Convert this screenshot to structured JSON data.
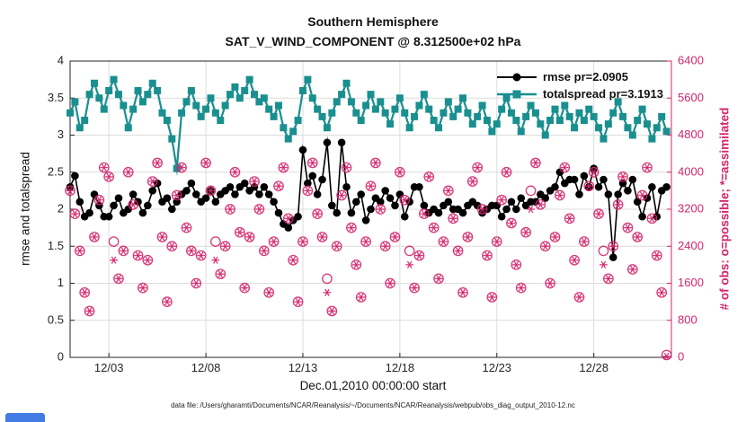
{
  "page": {
    "background": "#ffffff"
  },
  "footer": {
    "text": "data file: /Users/gharamti/Documents/NCAR/Reanalysis/~/Documents/NCAR/Reanalysis/webpub/obs_diag_output_2010-12.nc"
  },
  "chart_data": {
    "type": "line",
    "title": "Southern Hemisphere",
    "subtitle": "SAT_V_WIND_COMPONENT @ 8.312500e+02 hPa",
    "xlabel": "Dec.01,2010 00:00:00 start",
    "ylabel_left": "rmse and totalspread",
    "ylabel_right": "# of obs: o=possible; *=assimilated",
    "grid": true,
    "xlim": [
      0,
      31
    ],
    "ylim_left": [
      0,
      4
    ],
    "ylim_right": [
      0,
      6400
    ],
    "yticks_left": [
      0,
      0.5,
      1,
      1.5,
      2,
      2.5,
      3,
      3.5,
      4
    ],
    "yticks_right": [
      0,
      800,
      1600,
      2400,
      3200,
      4000,
      4800,
      5600,
      6400
    ],
    "xticks": [
      {
        "pos": 2,
        "label": "12/03"
      },
      {
        "pos": 7,
        "label": "12/08"
      },
      {
        "pos": 12,
        "label": "12/13"
      },
      {
        "pos": 17,
        "label": "12/18"
      },
      {
        "pos": 22,
        "label": "12/23"
      },
      {
        "pos": 27,
        "label": "12/28"
      }
    ],
    "x_step_days": 0.25,
    "colors": {
      "rmse": "#000000",
      "totalspread": "#1a8f8f",
      "obs": "#d4256b",
      "grid": "#dcdcdc",
      "axis": "#262626"
    },
    "legend": {
      "position": "top-right-inside",
      "entries": [
        {
          "label": "rmse pr=2.0905",
          "color": "#000000",
          "marker": "circle"
        },
        {
          "label": "totalspread pr=3.1913",
          "color": "#1a8f8f",
          "marker": "square"
        }
      ]
    },
    "series": [
      {
        "name": "rmse",
        "axis": "left",
        "color": "#000000",
        "marker": "filled-circle",
        "values": [
          2.3,
          2.45,
          2.1,
          1.9,
          1.95,
          2.2,
          2.05,
          1.9,
          1.9,
          2.05,
          2.15,
          1.95,
          2.0,
          2.2,
          2.1,
          1.95,
          2.05,
          2.25,
          2.35,
          2.1,
          2.15,
          2.0,
          2.1,
          2.2,
          2.25,
          2.35,
          2.2,
          2.1,
          2.15,
          2.25,
          2.1,
          2.2,
          2.25,
          2.3,
          2.2,
          2.3,
          2.35,
          2.25,
          2.3,
          2.2,
          2.3,
          2.2,
          2.1,
          1.95,
          1.8,
          1.75,
          1.85,
          1.9,
          2.8,
          2.35,
          2.45,
          2.2,
          2.4,
          2.9,
          2.05,
          1.95,
          2.9,
          2.3,
          1.95,
          2.1,
          2.2,
          1.85,
          2.0,
          2.15,
          2.1,
          2.25,
          2.15,
          2.05,
          2.2,
          1.9,
          2.1,
          2.3,
          2.3,
          2.05,
          1.95,
          2.0,
          1.95,
          2.05,
          2.1,
          2.0,
          2.0,
          1.95,
          2.05,
          2.1,
          2.05,
          1.95,
          2.0,
          2.05,
          2.05,
          1.9,
          2.0,
          2.1,
          2.0,
          2.15,
          2.05,
          2.1,
          2.1,
          2.2,
          2.15,
          2.25,
          2.3,
          2.5,
          2.35,
          2.4,
          2.4,
          2.2,
          2.45,
          2.3,
          2.55,
          2.3,
          2.4,
          2.2,
          1.35,
          2.2,
          2.35,
          2.25,
          2.4,
          2.1,
          1.9,
          2.15,
          2.3,
          1.9,
          2.25,
          2.3
        ]
      },
      {
        "name": "totalspread",
        "axis": "left",
        "color": "#1a8f8f",
        "marker": "filled-square",
        "values": [
          3.3,
          3.45,
          3.1,
          3.2,
          3.55,
          3.7,
          3.5,
          3.35,
          3.6,
          3.75,
          3.55,
          3.4,
          3.1,
          3.35,
          3.6,
          3.45,
          3.55,
          3.7,
          3.6,
          3.3,
          3.2,
          2.95,
          2.55,
          3.3,
          3.45,
          3.6,
          3.4,
          3.25,
          3.35,
          3.5,
          3.3,
          3.2,
          3.4,
          3.55,
          3.65,
          3.5,
          3.6,
          3.75,
          3.55,
          3.45,
          3.5,
          3.35,
          3.25,
          3.4,
          3.1,
          2.95,
          3.05,
          3.2,
          3.6,
          3.75,
          3.5,
          3.35,
          3.25,
          3.1,
          3.3,
          3.45,
          3.55,
          3.7,
          3.45,
          3.3,
          3.2,
          3.4,
          3.55,
          3.35,
          3.45,
          3.3,
          3.15,
          3.35,
          3.5,
          3.3,
          3.1,
          3.25,
          3.4,
          3.55,
          3.35,
          3.2,
          3.1,
          3.3,
          3.45,
          3.25,
          3.35,
          3.5,
          3.3,
          3.15,
          3.25,
          3.4,
          3.2,
          3.05,
          3.15,
          3.35,
          3.5,
          3.3,
          3.2,
          3.05,
          3.25,
          3.4,
          3.3,
          3.15,
          3.0,
          3.2,
          3.35,
          3.2,
          3.4,
          3.25,
          3.1,
          3.3,
          3.2,
          3.35,
          3.25,
          3.1,
          2.95,
          3.15,
          3.3,
          3.45,
          3.25,
          3.1,
          3.0,
          3.2,
          3.35,
          3.15,
          2.95,
          3.1,
          3.25,
          3.05
        ]
      },
      {
        "name": "obs_possible",
        "axis": "right",
        "color": "#d4256b",
        "marker": "open-circle",
        "values": [
          3600,
          3100,
          2300,
          1400,
          1000,
          2600,
          3400,
          4100,
          3900,
          2500,
          1700,
          2300,
          4000,
          3300,
          2200,
          1500,
          2100,
          3800,
          4200,
          2600,
          1200,
          2400,
          3500,
          4100,
          2800,
          2300,
          1600,
          2200,
          4200,
          3600,
          2500,
          1800,
          2400,
          3200,
          4000,
          2700,
          1500,
          2600,
          3800,
          3200,
          2300,
          1400,
          2500,
          3700,
          4100,
          3000,
          2100,
          1200,
          2500,
          3600,
          4200,
          3100,
          2600,
          1700,
          1000,
          2400,
          3500,
          4100,
          2800,
          2000,
          1300,
          2500,
          3700,
          4200,
          3200,
          2400,
          1600,
          2600,
          4000,
          3400,
          2300,
          1500,
          2200,
          3100,
          3900,
          2800,
          1700,
          2500,
          3600,
          3000,
          2300,
          1400,
          2600,
          3800,
          4100,
          3200,
          2200,
          1300,
          2500,
          3400,
          4000,
          2900,
          2000,
          1500,
          2700,
          3600,
          4200,
          3300,
          2400,
          1600,
          2600,
          3500,
          4100,
          3000,
          2100,
          1300,
          2500,
          3700,
          4000,
          3100,
          2300,
          1700,
          2400,
          3300,
          3900,
          2800,
          1900,
          2600,
          3500,
          4100,
          3000,
          2200,
          1400,
          50
        ]
      },
      {
        "name": "obs_assimilated",
        "axis": "right",
        "color": "#d4256b",
        "marker": "asterisk",
        "values": [
          3600,
          3100,
          2300,
          1400,
          1000,
          2600,
          3400,
          4100,
          3900,
          2100,
          1700,
          2300,
          4000,
          3300,
          2200,
          1500,
          2100,
          3800,
          4200,
          2600,
          1200,
          2400,
          3500,
          4100,
          2800,
          2300,
          1600,
          2200,
          4200,
          3600,
          2100,
          1800,
          2400,
          3200,
          4000,
          2700,
          1500,
          2600,
          3800,
          3200,
          2300,
          1400,
          2500,
          3700,
          4100,
          3000,
          2100,
          1200,
          2500,
          3600,
          4200,
          3100,
          2600,
          1400,
          1000,
          2400,
          3500,
          4100,
          2800,
          2000,
          1300,
          2500,
          3700,
          4200,
          3200,
          2400,
          1600,
          2600,
          4000,
          3400,
          2000,
          1500,
          2200,
          3100,
          3900,
          2800,
          1700,
          2500,
          3600,
          3000,
          2300,
          1400,
          2600,
          3800,
          4100,
          3200,
          2200,
          1300,
          2500,
          3400,
          4000,
          2900,
          2000,
          1500,
          2700,
          3200,
          4200,
          3300,
          2400,
          1600,
          2600,
          3500,
          4100,
          3000,
          2100,
          1300,
          2500,
          3700,
          4000,
          3100,
          2000,
          1700,
          2400,
          3300,
          3900,
          2800,
          1900,
          2600,
          3500,
          4100,
          3000,
          2200,
          1400,
          20
        ]
      }
    ]
  }
}
